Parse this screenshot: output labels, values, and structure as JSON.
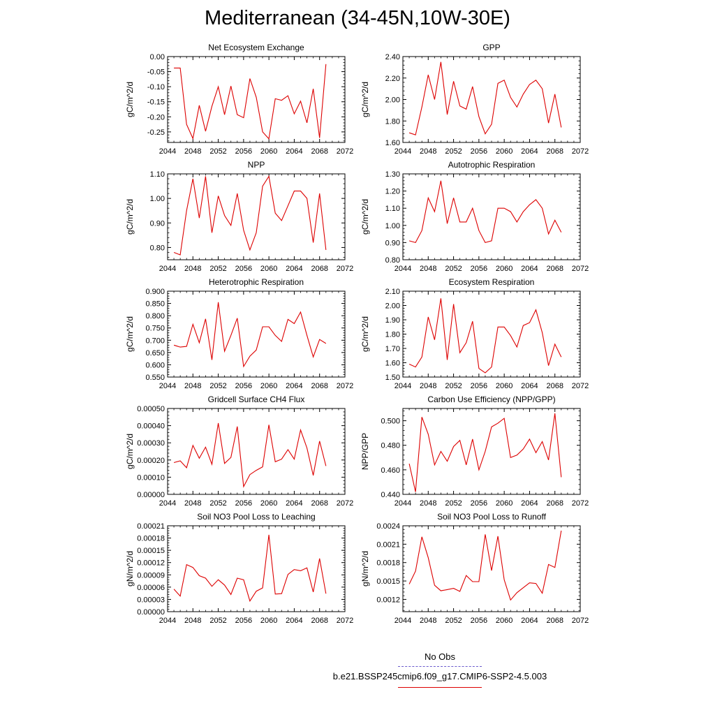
{
  "title": "Mediterranean (34-45N,10W-30E)",
  "legend": {
    "entries": [
      {
        "label": "No Obs",
        "color": "#6a5acd",
        "dash": true
      },
      {
        "label": "b.e21.BSSP245cmip6.f09_g17.CMIP6-SSP2-4.5.003",
        "color": "#dd0000",
        "dash": false
      }
    ]
  },
  "chart_data": [
    {
      "type": "line",
      "title": "Net Ecosystem Exchange",
      "ylabel": "gC/m^2/d",
      "xlim": [
        2044,
        2072
      ],
      "xticks": [
        2044,
        2048,
        2052,
        2056,
        2060,
        2064,
        2068,
        2072
      ],
      "ylim": [
        -0.285,
        0.0
      ],
      "yticks": [
        -0.25,
        -0.2,
        -0.15,
        -0.1,
        -0.05,
        0.0
      ],
      "yticklabels": [
        "-0.25",
        "-0.20",
        "-0.15",
        "-0.10",
        "-0.05",
        "0.00"
      ],
      "x": [
        2045,
        2046,
        2047,
        2048,
        2049,
        2050,
        2051,
        2052,
        2053,
        2054,
        2055,
        2056,
        2057,
        2058,
        2059,
        2060,
        2061,
        2062,
        2063,
        2064,
        2065,
        2066,
        2067,
        2068,
        2069
      ],
      "series": [
        {
          "values": [
            -0.038,
            -0.038,
            -0.225,
            -0.272,
            -0.162,
            -0.248,
            -0.165,
            -0.1,
            -0.193,
            -0.098,
            -0.193,
            -0.203,
            -0.073,
            -0.135,
            -0.25,
            -0.273,
            -0.14,
            -0.145,
            -0.13,
            -0.19,
            -0.148,
            -0.22,
            -0.107,
            -0.27,
            -0.025
          ]
        }
      ]
    },
    {
      "type": "line",
      "title": "GPP",
      "ylabel": "gC/m^2/d",
      "xlim": [
        2044,
        2072
      ],
      "xticks": [
        2044,
        2048,
        2052,
        2056,
        2060,
        2064,
        2068,
        2072
      ],
      "ylim": [
        1.6,
        2.4
      ],
      "yticks": [
        1.6,
        1.8,
        2.0,
        2.2,
        2.4
      ],
      "yticklabels": [
        "1.60",
        "1.80",
        "2.00",
        "2.20",
        "2.40"
      ],
      "x": [
        2045,
        2046,
        2047,
        2048,
        2049,
        2050,
        2051,
        2052,
        2053,
        2054,
        2055,
        2056,
        2057,
        2058,
        2059,
        2060,
        2061,
        2062,
        2063,
        2064,
        2065,
        2066,
        2067,
        2068,
        2069
      ],
      "series": [
        {
          "values": [
            1.69,
            1.67,
            1.93,
            2.23,
            2.0,
            2.35,
            1.86,
            2.17,
            1.94,
            1.91,
            2.12,
            1.84,
            1.68,
            1.77,
            2.15,
            2.18,
            2.02,
            1.93,
            2.05,
            2.14,
            2.18,
            2.1,
            1.78,
            2.05,
            1.74
          ]
        }
      ]
    },
    {
      "type": "line",
      "title": "NPP",
      "ylabel": "gC/m^2/d",
      "xlim": [
        2044,
        2072
      ],
      "xticks": [
        2044,
        2048,
        2052,
        2056,
        2060,
        2064,
        2068,
        2072
      ],
      "ylim": [
        0.75,
        1.1
      ],
      "yticks": [
        0.8,
        0.9,
        1.0,
        1.1
      ],
      "yticklabels": [
        "0.80",
        "0.90",
        "1.00",
        "1.10"
      ],
      "x": [
        2045,
        2046,
        2047,
        2048,
        2049,
        2050,
        2051,
        2052,
        2053,
        2054,
        2055,
        2056,
        2057,
        2058,
        2059,
        2060,
        2061,
        2062,
        2063,
        2064,
        2065,
        2066,
        2067,
        2068,
        2069
      ],
      "series": [
        {
          "values": [
            0.78,
            0.77,
            0.95,
            1.08,
            0.92,
            1.09,
            0.86,
            1.01,
            0.93,
            0.89,
            1.02,
            0.87,
            0.79,
            0.86,
            1.05,
            1.09,
            0.94,
            0.91,
            0.97,
            1.03,
            1.03,
            1.0,
            0.82,
            1.02,
            0.79
          ]
        }
      ]
    },
    {
      "type": "line",
      "title": "Autotrophic Respiration",
      "ylabel": "gC/m^2/d",
      "xlim": [
        2044,
        2072
      ],
      "xticks": [
        2044,
        2048,
        2052,
        2056,
        2060,
        2064,
        2068,
        2072
      ],
      "ylim": [
        0.8,
        1.3
      ],
      "yticks": [
        0.8,
        0.9,
        1.0,
        1.1,
        1.2,
        1.3
      ],
      "yticklabels": [
        "0.80",
        "0.90",
        "1.00",
        "1.10",
        "1.20",
        "1.30"
      ],
      "x": [
        2045,
        2046,
        2047,
        2048,
        2049,
        2050,
        2051,
        2052,
        2053,
        2054,
        2055,
        2056,
        2057,
        2058,
        2059,
        2060,
        2061,
        2062,
        2063,
        2064,
        2065,
        2066,
        2067,
        2068,
        2069
      ],
      "series": [
        {
          "values": [
            0.91,
            0.9,
            0.97,
            1.16,
            1.08,
            1.26,
            1.01,
            1.16,
            1.02,
            1.02,
            1.1,
            0.97,
            0.9,
            0.91,
            1.1,
            1.1,
            1.08,
            1.02,
            1.08,
            1.12,
            1.15,
            1.1,
            0.95,
            1.03,
            0.96
          ]
        }
      ]
    },
    {
      "type": "line",
      "title": "Heterotrophic Respiration",
      "ylabel": "gC/m^2/d",
      "xlim": [
        2044,
        2072
      ],
      "xticks": [
        2044,
        2048,
        2052,
        2056,
        2060,
        2064,
        2068,
        2072
      ],
      "ylim": [
        0.55,
        0.9
      ],
      "yticks": [
        0.55,
        0.6,
        0.65,
        0.7,
        0.75,
        0.8,
        0.85,
        0.9
      ],
      "yticklabels": [
        "0.550",
        "0.600",
        "0.650",
        "0.700",
        "0.750",
        "0.800",
        "0.850",
        "0.900"
      ],
      "x": [
        2045,
        2046,
        2047,
        2048,
        2049,
        2050,
        2051,
        2052,
        2053,
        2054,
        2055,
        2056,
        2057,
        2058,
        2059,
        2060,
        2061,
        2062,
        2063,
        2064,
        2065,
        2066,
        2067,
        2068,
        2069
      ],
      "series": [
        {
          "values": [
            0.68,
            0.672,
            0.675,
            0.765,
            0.69,
            0.787,
            0.62,
            0.855,
            0.655,
            0.72,
            0.79,
            0.593,
            0.635,
            0.66,
            0.755,
            0.755,
            0.72,
            0.695,
            0.785,
            0.768,
            0.815,
            0.72,
            0.632,
            0.703,
            0.687
          ]
        }
      ]
    },
    {
      "type": "line",
      "title": "Ecosystem Respiration",
      "ylabel": "gC/m^2/d",
      "xlim": [
        2044,
        2072
      ],
      "xticks": [
        2044,
        2048,
        2052,
        2056,
        2060,
        2064,
        2068,
        2072
      ],
      "ylim": [
        1.5,
        2.1
      ],
      "yticks": [
        1.5,
        1.6,
        1.7,
        1.8,
        1.9,
        2.0,
        2.1
      ],
      "yticklabels": [
        "1.50",
        "1.60",
        "1.70",
        "1.80",
        "1.90",
        "2.00",
        "2.10"
      ],
      "x": [
        2045,
        2046,
        2047,
        2048,
        2049,
        2050,
        2051,
        2052,
        2053,
        2054,
        2055,
        2056,
        2057,
        2058,
        2059,
        2060,
        2061,
        2062,
        2063,
        2064,
        2065,
        2066,
        2067,
        2068,
        2069
      ],
      "series": [
        {
          "values": [
            1.59,
            1.57,
            1.64,
            1.92,
            1.76,
            2.05,
            1.62,
            2.01,
            1.67,
            1.74,
            1.89,
            1.56,
            1.53,
            1.57,
            1.85,
            1.85,
            1.79,
            1.71,
            1.86,
            1.88,
            1.97,
            1.81,
            1.58,
            1.73,
            1.64
          ]
        }
      ]
    },
    {
      "type": "line",
      "title": "Gridcell Surface CH4 Flux",
      "ylabel": "gC/m^2/d",
      "xlim": [
        2044,
        2072
      ],
      "xticks": [
        2044,
        2048,
        2052,
        2056,
        2060,
        2064,
        2068,
        2072
      ],
      "ylim": [
        0.0,
        0.0005
      ],
      "yticks": [
        0.0,
        0.0001,
        0.0002,
        0.0003,
        0.0004,
        0.0005
      ],
      "yticklabels": [
        "0.00000",
        "0.00010",
        "0.00020",
        "0.00030",
        "0.00040",
        "0.00050"
      ],
      "x": [
        2045,
        2046,
        2047,
        2048,
        2049,
        2050,
        2051,
        2052,
        2053,
        2054,
        2055,
        2056,
        2057,
        2058,
        2059,
        2060,
        2061,
        2062,
        2063,
        2064,
        2065,
        2066,
        2067,
        2068,
        2069
      ],
      "series": [
        {
          "values": [
            0.000185,
            0.000195,
            0.000155,
            0.000285,
            0.00021,
            0.000275,
            0.000175,
            0.000415,
            0.00018,
            0.000215,
            0.000395,
            4.5e-05,
            0.000115,
            0.00014,
            0.00016,
            0.000405,
            0.00019,
            0.000205,
            0.00026,
            0.000205,
            0.000375,
            0.00027,
            0.00011,
            0.00031,
            0.000165
          ]
        }
      ]
    },
    {
      "type": "line",
      "title": "Carbon Use Efficiency (NPP/GPP)",
      "ylabel": "NPP/GPP",
      "xlim": [
        2044,
        2072
      ],
      "xticks": [
        2044,
        2048,
        2052,
        2056,
        2060,
        2064,
        2068,
        2072
      ],
      "ylim": [
        0.44,
        0.51
      ],
      "yticks": [
        0.44,
        0.46,
        0.48,
        0.5
      ],
      "yticklabels": [
        "0.440",
        "0.460",
        "0.480",
        "0.500"
      ],
      "x": [
        2045,
        2046,
        2047,
        2048,
        2049,
        2050,
        2051,
        2052,
        2053,
        2054,
        2055,
        2056,
        2057,
        2058,
        2059,
        2060,
        2061,
        2062,
        2063,
        2064,
        2065,
        2066,
        2067,
        2068,
        2069
      ],
      "series": [
        {
          "values": [
            0.465,
            0.442,
            0.503,
            0.489,
            0.464,
            0.475,
            0.467,
            0.479,
            0.484,
            0.464,
            0.485,
            0.46,
            0.475,
            0.495,
            0.498,
            0.502,
            0.47,
            0.472,
            0.477,
            0.485,
            0.474,
            0.483,
            0.468,
            0.506,
            0.454
          ]
        }
      ]
    },
    {
      "type": "line",
      "title": "Soil NO3 Pool Loss to Leaching",
      "ylabel": "gN/m^2/d",
      "xlim": [
        2044,
        2072
      ],
      "xticks": [
        2044,
        2048,
        2052,
        2056,
        2060,
        2064,
        2068,
        2072
      ],
      "ylim": [
        0.0,
        0.00021
      ],
      "yticks": [
        0.0,
        3e-05,
        6e-05,
        9e-05,
        0.00012,
        0.00015,
        0.00018,
        0.00021
      ],
      "yticklabels": [
        "0.00000",
        "0.00003",
        "0.00006",
        "0.00009",
        "0.00012",
        "0.00015",
        "0.00018",
        "0.00021"
      ],
      "x": [
        2045,
        2046,
        2047,
        2048,
        2049,
        2050,
        2051,
        2052,
        2053,
        2054,
        2055,
        2056,
        2057,
        2058,
        2059,
        2060,
        2061,
        2062,
        2063,
        2064,
        2065,
        2066,
        2067,
        2068,
        2069
      ],
      "series": [
        {
          "values": [
            5.5e-05,
            3.8e-05,
            0.000115,
            0.000108,
            8.8e-05,
            8.2e-05,
            6.2e-05,
            7.8e-05,
            6.5e-05,
            4.2e-05,
            8.2e-05,
            7.8e-05,
            2.6e-05,
            5e-05,
            5.8e-05,
            0.000188,
            4.3e-05,
            4.4e-05,
            9.1e-05,
            0.000103,
            0.0001,
            0.000107,
            4.8e-05,
            0.00013,
            4.4e-05
          ]
        }
      ]
    },
    {
      "type": "line",
      "title": "Soil NO3 Pool Loss to Runoff",
      "ylabel": "gN/m^2/d",
      "xlim": [
        2044,
        2072
      ],
      "xticks": [
        2044,
        2048,
        2052,
        2056,
        2060,
        2064,
        2068,
        2072
      ],
      "ylim": [
        0.001,
        0.0024
      ],
      "yticks": [
        0.0012,
        0.0015,
        0.0018,
        0.0021,
        0.0024
      ],
      "yticklabels": [
        "0.0012",
        "0.0015",
        "0.0018",
        "0.0021",
        "0.0024"
      ],
      "x": [
        2045,
        2046,
        2047,
        2048,
        2049,
        2050,
        2051,
        2052,
        2053,
        2054,
        2055,
        2056,
        2057,
        2058,
        2059,
        2060,
        2061,
        2062,
        2063,
        2064,
        2065,
        2066,
        2067,
        2068,
        2069
      ],
      "series": [
        {
          "values": [
            0.00145,
            0.00166,
            0.00222,
            0.00188,
            0.00143,
            0.00134,
            0.00136,
            0.00138,
            0.00133,
            0.00159,
            0.00149,
            0.00149,
            0.00226,
            0.00167,
            0.00223,
            0.00152,
            0.00119,
            0.00131,
            0.00139,
            0.00147,
            0.00146,
            0.0013,
            0.00177,
            0.00172,
            0.00232
          ]
        }
      ]
    }
  ]
}
